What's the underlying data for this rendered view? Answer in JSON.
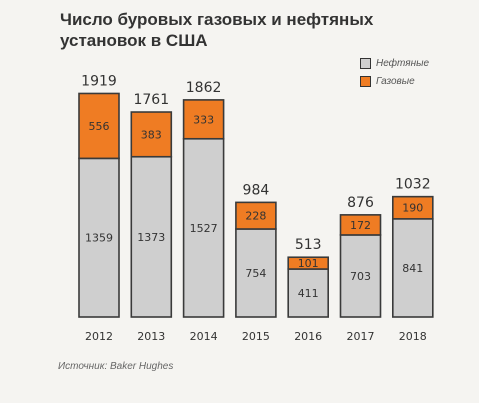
{
  "title": "Число буровых газовых и нефтяных установок в США",
  "source": "Источник: Baker Hughes",
  "colors": {
    "oil": "#cfcfcf",
    "gas": "#ef7c23",
    "outline": "#3a3a3a",
    "text": "#333333"
  },
  "chart_data": {
    "type": "bar",
    "stacked": true,
    "title": "Число буровых газовых и нефтяных установок в США",
    "categories": [
      "2012",
      "2013",
      "2014",
      "2015",
      "2016",
      "2017",
      "2018"
    ],
    "totals": [
      1919,
      1761,
      1862,
      984,
      513,
      876,
      1032
    ],
    "series": [
      {
        "name": "Нефтяные",
        "color": "#cfcfcf",
        "values": [
          1359,
          1373,
          1527,
          754,
          411,
          703,
          841
        ]
      },
      {
        "name": "Газовые",
        "color": "#ef7c23",
        "values": [
          556,
          383,
          333,
          228,
          101,
          172,
          190
        ]
      }
    ],
    "ylim": [
      0,
      1919
    ],
    "grid": false,
    "legend": "top-right"
  }
}
